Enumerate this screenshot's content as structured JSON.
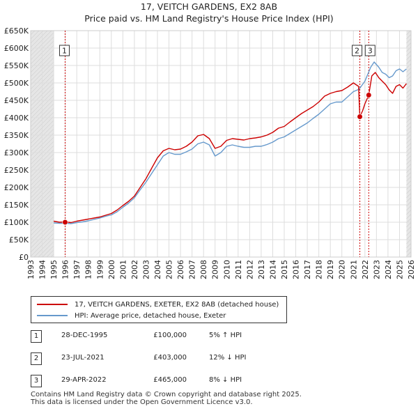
{
  "chart_data": {
    "type": "line",
    "title": "17, VEITCH GARDENS, EX2 8AB",
    "subtitle": "Price paid vs. HM Land Registry's House Price Index (HPI)",
    "xlim": [
      1993,
      2026
    ],
    "ylim": [
      0,
      650000
    ],
    "x_ticks": [
      1993,
      1994,
      1995,
      1996,
      1997,
      1998,
      1999,
      2000,
      2001,
      2002,
      2003,
      2004,
      2005,
      2006,
      2007,
      2008,
      2009,
      2010,
      2011,
      2012,
      2013,
      2014,
      2015,
      2016,
      2017,
      2018,
      2019,
      2020,
      2021,
      2022,
      2023,
      2024,
      2025,
      2026
    ],
    "x_tick_labels": [
      "1993",
      "1994",
      "1995",
      "1996",
      "1997",
      "1998",
      "1999",
      "2000",
      "2001",
      "2002",
      "2003",
      "2004",
      "2005",
      "2006",
      "2007",
      "2008",
      "2009",
      "2010",
      "2011",
      "2012",
      "2013",
      "2014",
      "2015",
      "2016",
      "2017",
      "2018",
      "2019",
      "2020",
      "2021",
      "2022",
      "2023",
      "2024",
      "2025",
      "2026"
    ],
    "y_ticks": [
      0,
      50000,
      100000,
      150000,
      200000,
      250000,
      300000,
      350000,
      400000,
      450000,
      500000,
      550000,
      600000,
      650000
    ],
    "y_tick_labels": [
      "£0",
      "£50K",
      "£100K",
      "£150K",
      "£200K",
      "£250K",
      "£300K",
      "£350K",
      "£400K",
      "£450K",
      "£500K",
      "£550K",
      "£600K",
      "£650K"
    ],
    "data_start": 1995.0,
    "data_end": 2025.6,
    "series": [
      {
        "name": "17, VEITCH GARDENS, EXETER, EX2 8AB (detached house)",
        "color": "#cc0000",
        "points": [
          [
            1995.0,
            103000
          ],
          [
            1995.5,
            100000
          ],
          [
            1996.0,
            101000
          ],
          [
            1996.5,
            99000
          ],
          [
            1997.0,
            103000
          ],
          [
            1997.5,
            106000
          ],
          [
            1998.0,
            109000
          ],
          [
            1998.5,
            112000
          ],
          [
            1999.0,
            115000
          ],
          [
            1999.5,
            120000
          ],
          [
            2000.0,
            125000
          ],
          [
            2000.5,
            135000
          ],
          [
            2001.0,
            148000
          ],
          [
            2001.5,
            160000
          ],
          [
            2002.0,
            175000
          ],
          [
            2002.5,
            200000
          ],
          [
            2003.0,
            225000
          ],
          [
            2003.5,
            255000
          ],
          [
            2004.0,
            285000
          ],
          [
            2004.5,
            305000
          ],
          [
            2005.0,
            312000
          ],
          [
            2005.5,
            308000
          ],
          [
            2006.0,
            310000
          ],
          [
            2006.5,
            318000
          ],
          [
            2007.0,
            330000
          ],
          [
            2007.5,
            348000
          ],
          [
            2008.0,
            352000
          ],
          [
            2008.5,
            340000
          ],
          [
            2009.0,
            312000
          ],
          [
            2009.5,
            318000
          ],
          [
            2010.0,
            335000
          ],
          [
            2010.5,
            340000
          ],
          [
            2011.0,
            338000
          ],
          [
            2011.5,
            336000
          ],
          [
            2012.0,
            340000
          ],
          [
            2012.5,
            342000
          ],
          [
            2013.0,
            345000
          ],
          [
            2013.5,
            350000
          ],
          [
            2014.0,
            358000
          ],
          [
            2014.5,
            370000
          ],
          [
            2015.0,
            375000
          ],
          [
            2015.5,
            388000
          ],
          [
            2016.0,
            400000
          ],
          [
            2016.5,
            412000
          ],
          [
            2017.0,
            422000
          ],
          [
            2017.5,
            432000
          ],
          [
            2018.0,
            445000
          ],
          [
            2018.5,
            462000
          ],
          [
            2019.0,
            470000
          ],
          [
            2019.5,
            475000
          ],
          [
            2020.0,
            478000
          ],
          [
            2020.5,
            488000
          ],
          [
            2021.0,
            500000
          ],
          [
            2021.45,
            490000
          ],
          [
            2021.56,
            403000
          ],
          [
            2021.8,
            420000
          ],
          [
            2022.0,
            440000
          ],
          [
            2022.33,
            465000
          ],
          [
            2022.6,
            520000
          ],
          [
            2022.9,
            530000
          ],
          [
            2023.2,
            515000
          ],
          [
            2023.5,
            505000
          ],
          [
            2023.8,
            495000
          ],
          [
            2024.1,
            480000
          ],
          [
            2024.4,
            470000
          ],
          [
            2024.7,
            490000
          ],
          [
            2025.0,
            495000
          ],
          [
            2025.3,
            485000
          ],
          [
            2025.6,
            498000
          ]
        ]
      },
      {
        "name": "HPI: Average price, detached house, Exeter",
        "color": "#6699cc",
        "points": [
          [
            1995.0,
            98000
          ],
          [
            1995.5,
            97000
          ],
          [
            1996.0,
            97000
          ],
          [
            1996.5,
            96000
          ],
          [
            1997.0,
            99000
          ],
          [
            1997.5,
            101000
          ],
          [
            1998.0,
            104000
          ],
          [
            1998.5,
            108000
          ],
          [
            1999.0,
            112000
          ],
          [
            1999.5,
            117000
          ],
          [
            2000.0,
            121000
          ],
          [
            2000.5,
            130000
          ],
          [
            2001.0,
            143000
          ],
          [
            2001.5,
            155000
          ],
          [
            2002.0,
            170000
          ],
          [
            2002.5,
            193000
          ],
          [
            2003.0,
            215000
          ],
          [
            2003.5,
            240000
          ],
          [
            2004.0,
            265000
          ],
          [
            2004.5,
            290000
          ],
          [
            2005.0,
            300000
          ],
          [
            2005.5,
            295000
          ],
          [
            2006.0,
            295000
          ],
          [
            2006.5,
            302000
          ],
          [
            2007.0,
            310000
          ],
          [
            2007.5,
            325000
          ],
          [
            2008.0,
            330000
          ],
          [
            2008.5,
            322000
          ],
          [
            2009.0,
            290000
          ],
          [
            2009.5,
            300000
          ],
          [
            2010.0,
            318000
          ],
          [
            2010.5,
            322000
          ],
          [
            2011.0,
            318000
          ],
          [
            2011.5,
            315000
          ],
          [
            2012.0,
            315000
          ],
          [
            2012.5,
            318000
          ],
          [
            2013.0,
            318000
          ],
          [
            2013.5,
            323000
          ],
          [
            2014.0,
            330000
          ],
          [
            2014.5,
            340000
          ],
          [
            2015.0,
            345000
          ],
          [
            2015.5,
            355000
          ],
          [
            2016.0,
            365000
          ],
          [
            2016.5,
            375000
          ],
          [
            2017.0,
            385000
          ],
          [
            2017.5,
            398000
          ],
          [
            2018.0,
            410000
          ],
          [
            2018.5,
            425000
          ],
          [
            2019.0,
            440000
          ],
          [
            2019.5,
            445000
          ],
          [
            2020.0,
            445000
          ],
          [
            2020.5,
            460000
          ],
          [
            2021.0,
            475000
          ],
          [
            2021.5,
            482000
          ],
          [
            2022.0,
            505000
          ],
          [
            2022.5,
            545000
          ],
          [
            2022.8,
            560000
          ],
          [
            2023.2,
            545000
          ],
          [
            2023.5,
            530000
          ],
          [
            2023.8,
            525000
          ],
          [
            2024.1,
            515000
          ],
          [
            2024.4,
            520000
          ],
          [
            2024.7,
            535000
          ],
          [
            2025.0,
            540000
          ],
          [
            2025.3,
            532000
          ],
          [
            2025.6,
            540000
          ]
        ]
      }
    ],
    "transactions": [
      {
        "label": "1",
        "x": 1995.99,
        "value": 100000
      },
      {
        "label": "2",
        "x": 2021.56,
        "value": 403000
      },
      {
        "label": "3",
        "x": 2022.33,
        "value": 465000
      }
    ]
  },
  "legend": {
    "items": [
      {
        "label": "17, VEITCH GARDENS, EXETER, EX2 8AB (detached house)",
        "color": "#cc0000"
      },
      {
        "label": "HPI: Average price, detached house, Exeter",
        "color": "#6699cc"
      }
    ]
  },
  "table": {
    "rows": [
      {
        "num": "1",
        "date": "28-DEC-1995",
        "price": "£100,000",
        "hpi": "5% ↑ HPI"
      },
      {
        "num": "2",
        "date": "23-JUL-2021",
        "price": "£403,000",
        "hpi": "12% ↓ HPI"
      },
      {
        "num": "3",
        "date": "29-APR-2022",
        "price": "£465,000",
        "hpi": "8% ↓ HPI"
      }
    ]
  },
  "footer": {
    "line1": "Contains HM Land Registry data © Crown copyright and database right 2025.",
    "line2": "This data is licensed under the Open Government Licence v3.0."
  }
}
